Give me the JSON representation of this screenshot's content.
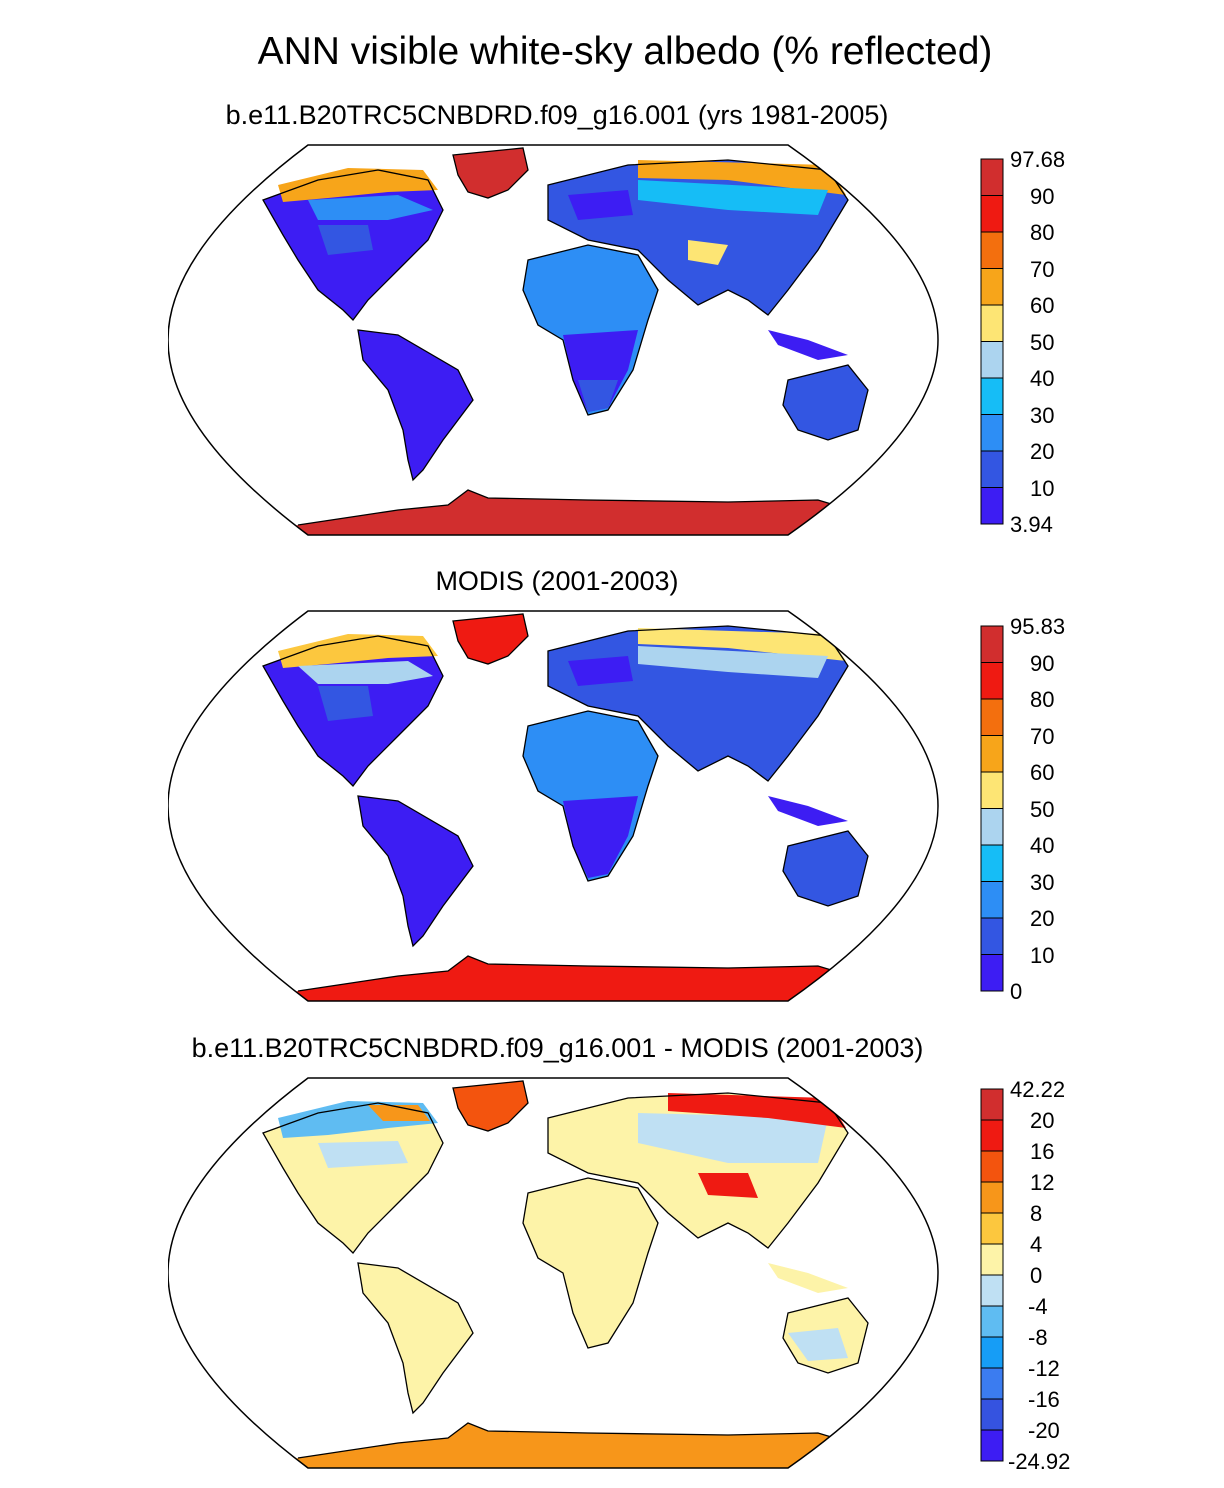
{
  "title": "ANN visible white-sky albedo (% reflected)",
  "panels": [
    {
      "subtitle": "b.e11.B20TRC5CNBDRD.f09_g16.001 (yrs 1981-2005)",
      "colorbar_labels": [
        "97.68",
        "90",
        "80",
        "70",
        "60",
        "50",
        "40",
        "30",
        "20",
        "10",
        "3.94"
      ],
      "colorbar_colors": [
        "#d12e2e",
        "#ef1a12",
        "#f36f0e",
        "#f7a51a",
        "#fde574",
        "#acd4ef",
        "#16bdf6",
        "#2d8ef5",
        "#3356e2",
        "#3d1df3"
      ]
    },
    {
      "subtitle": "MODIS (2001-2003)",
      "colorbar_labels": [
        "95.83",
        "90",
        "80",
        "70",
        "60",
        "50",
        "40",
        "30",
        "20",
        "10",
        "0"
      ],
      "colorbar_colors": [
        "#d12e2e",
        "#ef1a12",
        "#f36f0e",
        "#f7a51a",
        "#fde574",
        "#acd4ef",
        "#16bdf6",
        "#2d8ef5",
        "#3356e2",
        "#3d1df3"
      ]
    },
    {
      "subtitle": "b.e11.B20TRC5CNBDRD.f09_g16.001 - MODIS (2001-2003)",
      "colorbar_labels": [
        "42.22",
        "20",
        "16",
        "12",
        "8",
        "4",
        "0",
        "-4",
        "-8",
        "-12",
        "-16",
        "-20",
        "-24.92"
      ],
      "colorbar_colors": [
        "#d12e2e",
        "#ef1a12",
        "#f3540e",
        "#f7961a",
        "#fcc73e",
        "#fdf3a8",
        "#bfe0f3",
        "#5fbcf2",
        "#169df6",
        "#3b7cf0",
        "#3553e0",
        "#3d1df3"
      ]
    }
  ]
}
